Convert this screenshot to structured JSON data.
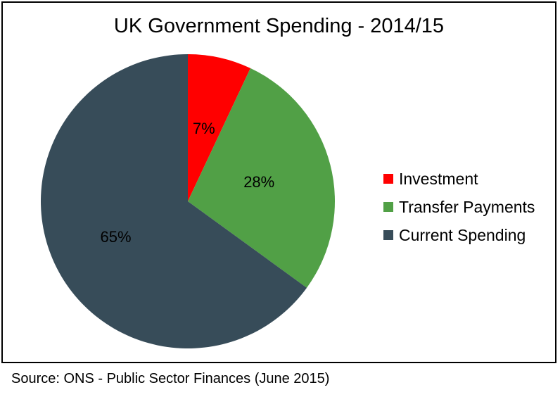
{
  "chart_data": {
    "type": "pie",
    "title": "UK Government Spending - 2014/15",
    "categories": [
      "Investment",
      "Transfer Payments",
      "Current Spending"
    ],
    "values": [
      7,
      28,
      65
    ],
    "labels": [
      "7%",
      "28%",
      "65%"
    ],
    "colors": [
      "#FF0000",
      "#51A046",
      "#374C59"
    ],
    "legend_position": "right"
  },
  "source": "Source: ONS - Public Sector Finances (June 2015)"
}
